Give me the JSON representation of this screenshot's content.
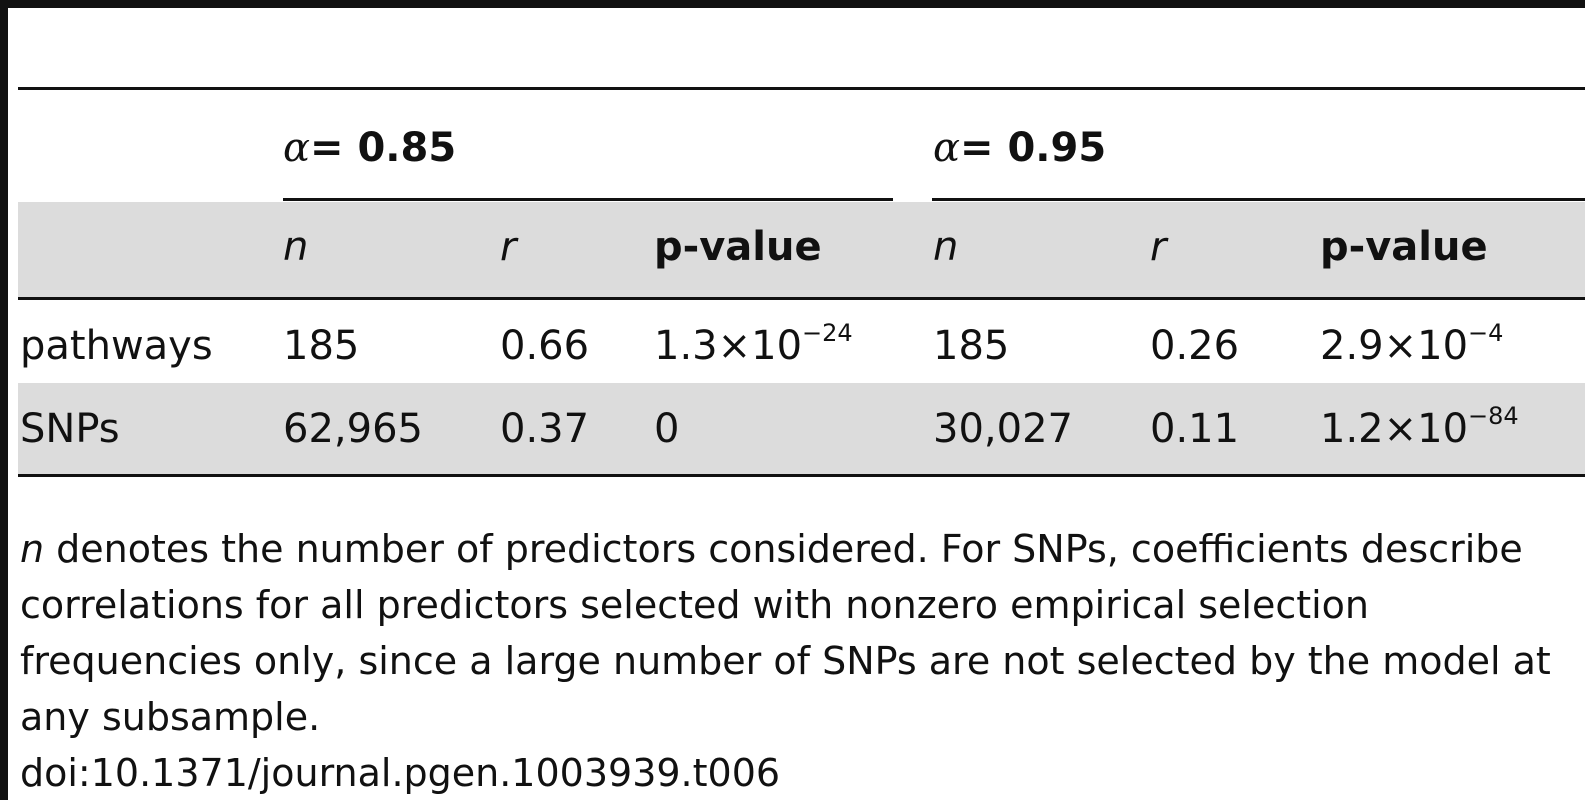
{
  "table": {
    "groups": [
      {
        "alpha_symbol": "α",
        "label": "= 0.85"
      },
      {
        "alpha_symbol": "α",
        "label": "= 0.95"
      }
    ],
    "columns": {
      "n": "n",
      "r": "r",
      "p": "p-value"
    },
    "rows": [
      {
        "label": "pathways",
        "g1": {
          "n": "185",
          "r": "0.66",
          "p_mantissa": "1.3",
          "p_times": "×10",
          "p_exp": "−24"
        },
        "g2": {
          "n": "185",
          "r": "0.26",
          "p_mantissa": "2.9",
          "p_times": "×10",
          "p_exp": "−4"
        }
      },
      {
        "label": "SNPs",
        "g1": {
          "n": "62,965",
          "r": "0.37",
          "p_value": "0"
        },
        "g2": {
          "n": "30,027",
          "r": "0.11",
          "p_mantissa": "1.2",
          "p_times": "×10",
          "p_exp": "−84"
        }
      }
    ]
  },
  "footnote": {
    "lead_symbol": "n",
    "line1_rest": " denotes the number of predictors considered. For SNPs, coefficients describe",
    "line2": "correlations for all predictors selected with nonzero empirical selection",
    "line3": "frequencies only, since a large number of SNPs are not selected by the model at",
    "line4": "any subsample.",
    "doi": "doi:10.1371/journal.pgen.1003939.t006"
  }
}
